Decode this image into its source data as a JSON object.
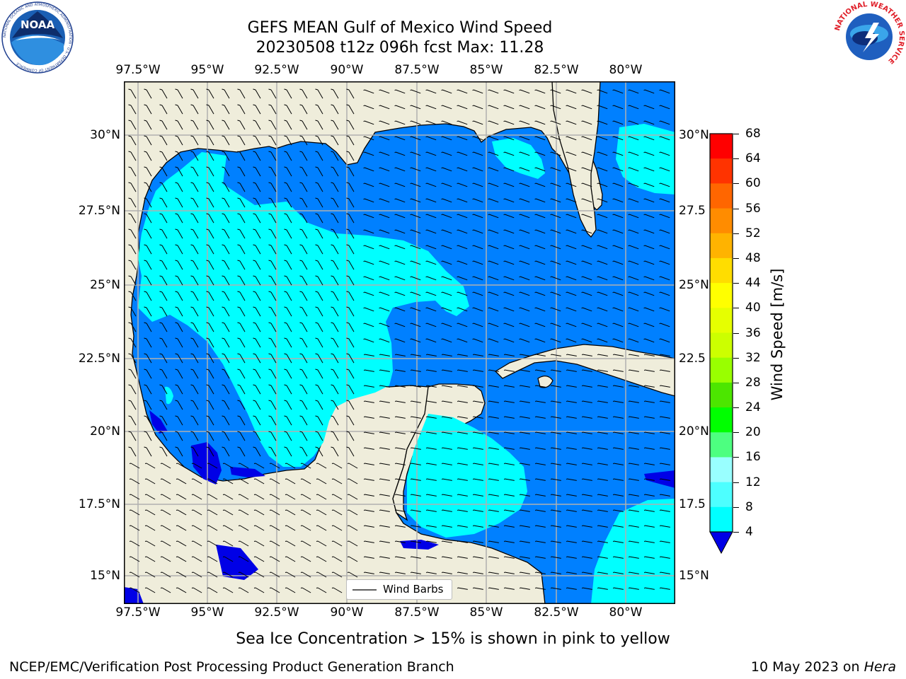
{
  "title": {
    "line1": "GEFS MEAN Gulf of Mexico Wind Speed",
    "line2": "20230508 t12z 096h fcst   Max: 11.28"
  },
  "logos": {
    "noaa": {
      "text": "NOAA",
      "ring_text": "NATIONAL OCEANIC AND ATMOSPHERIC ADMINISTRATION · U.S. DEPARTMENT OF COMMERCE"
    },
    "nws": {
      "ring_text": "NATIONAL WEATHER SERVICE"
    }
  },
  "map": {
    "lon_labels": [
      "97.5°W",
      "95°W",
      "92.5°W",
      "90°W",
      "87.5°W",
      "85°W",
      "82.5°W",
      "80°W"
    ],
    "lat_labels_left": [
      "30°N",
      "27.5°N",
      "25°N",
      "22.5°N",
      "20°N",
      "17.5°N",
      "15°N"
    ],
    "lat_labels_right": [
      "30°N",
      "27.5",
      "25°N",
      "22.5",
      "20°N",
      "17.5",
      "15°N"
    ],
    "legend_label": "Wind Barbs",
    "colors": {
      "land": "#efeddb",
      "wind_4_8": "#0080ff",
      "wind_8_12": "#00ffff",
      "wind_below_4": "#0000e6",
      "grid": "#b0b0b0"
    }
  },
  "colorbar": {
    "label": "Wind Speed [m/s]",
    "ticks": [
      "68",
      "64",
      "60",
      "56",
      "52",
      "48",
      "44",
      "40",
      "36",
      "32",
      "28",
      "24",
      "20",
      "16",
      "12",
      "8",
      "4"
    ],
    "colors": [
      "#ff0000",
      "#ff3300",
      "#ff6600",
      "#ff8c00",
      "#ffb300",
      "#ffdd00",
      "#ffff00",
      "#e6ff00",
      "#ccff00",
      "#99ff00",
      "#4ce600",
      "#00ff00",
      "#4dff80",
      "#99ffff",
      "#4dffff",
      "#00ffff",
      "#0080ff"
    ],
    "under_color": "#0000e6"
  },
  "caption": "Sea Ice Concentration > 15% is shown in pink to yellow",
  "footer": {
    "left": "NCEP/EMC/Verification Post Processing Product Generation Branch",
    "date": "10 May 2023 on ",
    "host": "Hera"
  }
}
